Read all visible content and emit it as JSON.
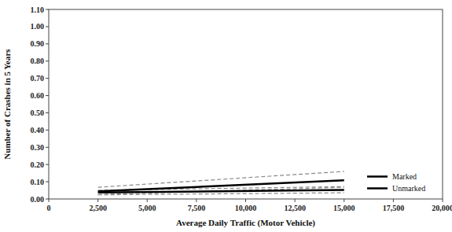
{
  "chart_data": {
    "type": "line",
    "xlabel": "Average Daily Traffic (Motor Vehicle)",
    "ylabel": "Number of Crashes in 5 Years",
    "x": [
      2500,
      15000
    ],
    "series": [
      {
        "values": [
          0.068,
          0.16
        ],
        "color": "#888888",
        "line_style": "dashed"
      },
      {
        "values": [
          0.026,
          0.068
        ],
        "color": "#888888",
        "line_style": "dashed"
      },
      {
        "values": [
          0.05,
          0.072
        ],
        "color": "#888888",
        "line_style": "dashed"
      },
      {
        "values": [
          0.024,
          0.036
        ],
        "color": "#888888",
        "line_style": "dashed"
      },
      {
        "name": "Marked",
        "values": [
          0.044,
          0.108
        ],
        "color": "#000000",
        "line_style": "solid"
      },
      {
        "name": "Unmarked",
        "values": [
          0.038,
          0.052
        ],
        "color": "#000000",
        "line_style": "solid"
      }
    ],
    "xlim": [
      0,
      20000
    ],
    "ylim": [
      0.0,
      1.1
    ],
    "xticks": [
      0,
      {
        "value": 2500,
        "label": "2,500"
      },
      {
        "value": 5000,
        "label": "5,000"
      },
      {
        "value": 7500,
        "label": "7,500"
      },
      {
        "value": 10000,
        "label": "10,000"
      },
      {
        "value": 12500,
        "label": "12,500"
      },
      {
        "value": 15000,
        "label": "15,000"
      },
      {
        "value": 17500,
        "label": "17,500"
      },
      {
        "value": 20000,
        "label": "20,000"
      }
    ],
    "yticks": [
      {
        "value": 0.0,
        "label": "0.00"
      },
      {
        "value": 0.1,
        "label": "0.10"
      },
      {
        "value": 0.2,
        "label": "0.20"
      },
      {
        "value": 0.3,
        "label": "0.30"
      },
      {
        "value": 0.4,
        "label": "0.40"
      },
      {
        "value": 0.5,
        "label": "0.50"
      },
      {
        "value": 0.6,
        "label": "0.60"
      },
      {
        "value": 0.7,
        "label": "0.70"
      },
      {
        "value": 0.8,
        "label": "0.80"
      },
      {
        "value": 0.9,
        "label": "0.90"
      },
      {
        "value": 1.0,
        "label": "1.00"
      },
      {
        "value": 1.1,
        "label": "1.10"
      }
    ],
    "grid": false,
    "legend": "lower right"
  }
}
